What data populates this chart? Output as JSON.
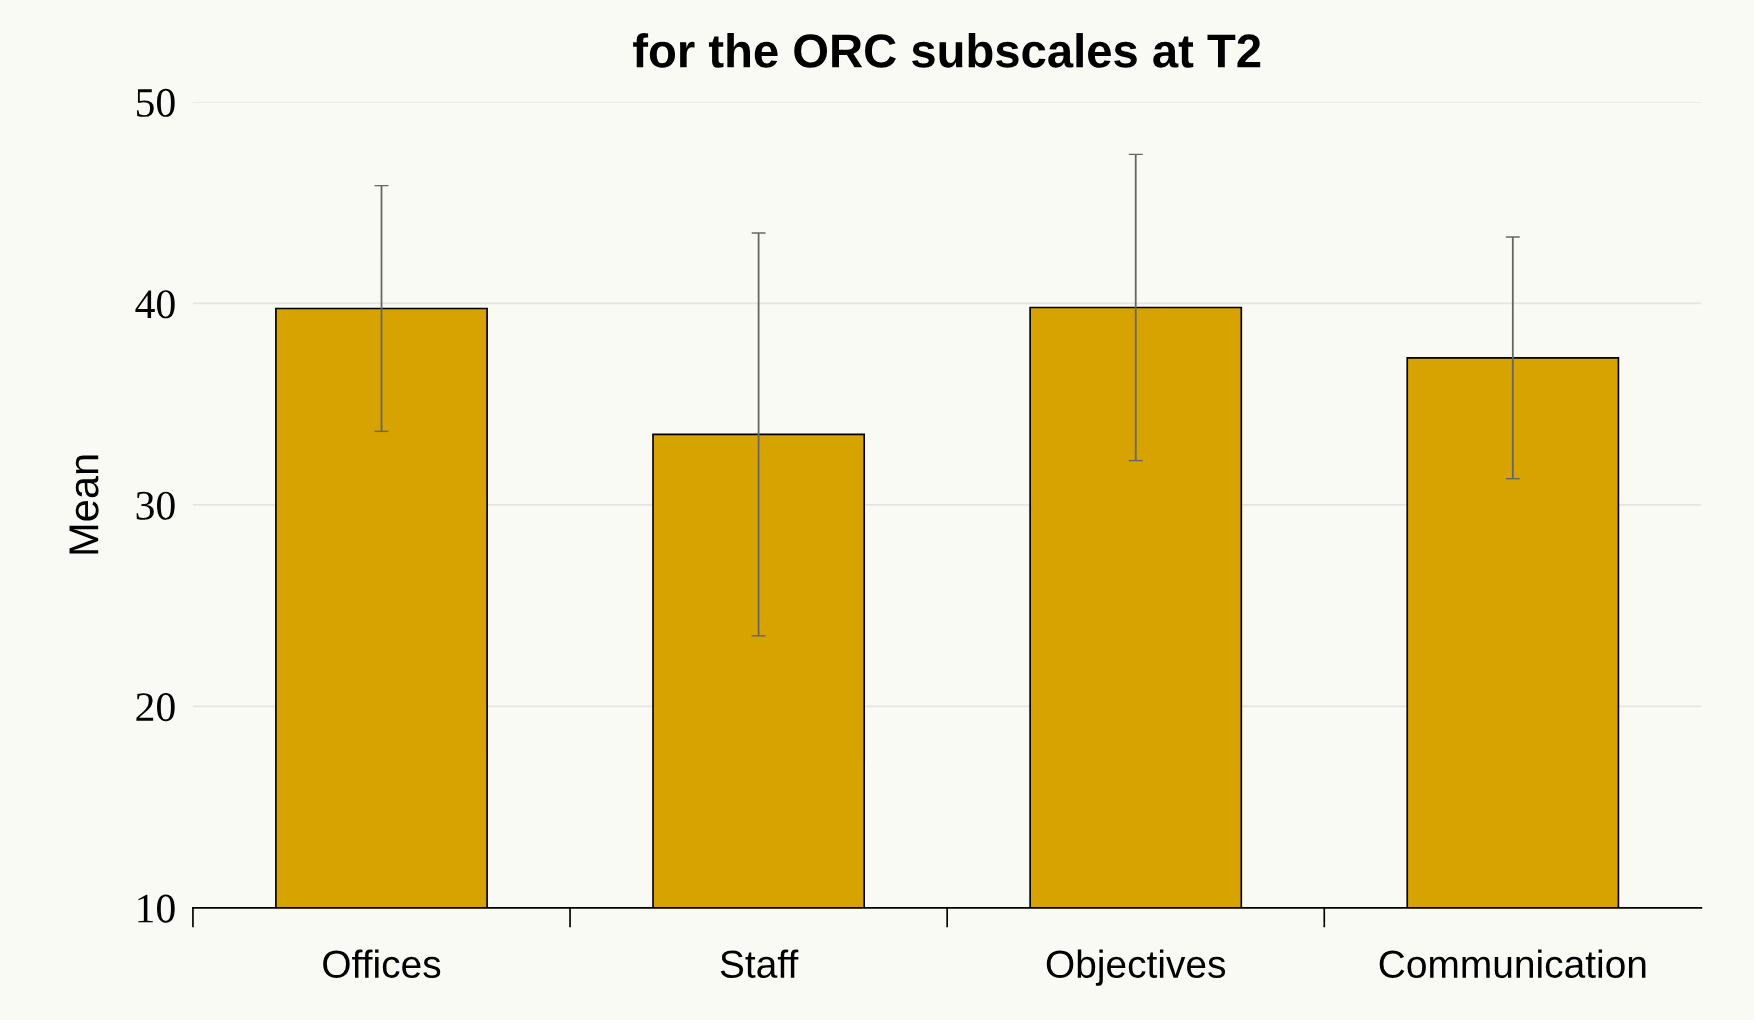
{
  "chart_data": {
    "type": "bar",
    "title": "for the ORC subscales at T2",
    "ylabel": "Mean",
    "categories": [
      "Offices",
      "Staff",
      "Objectives",
      "Communication"
    ],
    "values": [
      39.75,
      33.5,
      39.8,
      37.3
    ],
    "errors": [
      6.1,
      10.0,
      7.6,
      6.0
    ],
    "color": "#d6a300",
    "ylim": [
      10,
      50
    ],
    "yticks": [
      10,
      20,
      30,
      40,
      50
    ],
    "grid": "y"
  }
}
